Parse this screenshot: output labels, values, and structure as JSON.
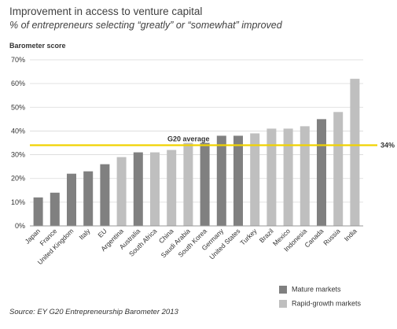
{
  "title": "Improvement in access to venture capital",
  "subtitle": "% of entrepreneurs selecting “greatly” or “somewhat” improved",
  "source": "Source: EY G20 Entrepreneurship Barometer 2013",
  "colors": {
    "mature": "#808080",
    "rapid": "#bfbfbf",
    "average_line": "#f0d200",
    "grid": "#d9d9d9",
    "axis": "#999999"
  },
  "legend": [
    {
      "label": "Mature markets",
      "group": "mature"
    },
    {
      "label": "Rapid-growth markets",
      "group": "rapid"
    }
  ],
  "chart_data": {
    "type": "bar",
    "ylabel": "Barometer score",
    "xlabel": "",
    "ylim": [
      0,
      70
    ],
    "yticks": [
      0,
      10,
      20,
      30,
      40,
      50,
      60,
      70
    ],
    "ytick_labels": [
      "0%",
      "10%",
      "20%",
      "30%",
      "40%",
      "50%",
      "60%",
      "70%"
    ],
    "grid": true,
    "categories": [
      "Japan",
      "France",
      "United Kingdom",
      "Italy",
      "EU",
      "Argentina",
      "Australia",
      "South Africa",
      "China",
      "Saudi Arabia",
      "South Korea",
      "Germany",
      "United States",
      "Turkey",
      "Brazil",
      "Mexico",
      "Indonesia",
      "Canada",
      "Russia",
      "India"
    ],
    "values": [
      12,
      14,
      22,
      23,
      26,
      29,
      31,
      31,
      32,
      35,
      35,
      38,
      38,
      39,
      41,
      41,
      42,
      45,
      48,
      62
    ],
    "groups": [
      "mature",
      "mature",
      "mature",
      "mature",
      "mature",
      "rapid",
      "mature",
      "rapid",
      "rapid",
      "rapid",
      "mature",
      "mature",
      "mature",
      "rapid",
      "rapid",
      "rapid",
      "rapid",
      "mature",
      "rapid",
      "rapid"
    ],
    "average": {
      "label": "G20 average",
      "value": 34,
      "value_label": "34%"
    }
  }
}
